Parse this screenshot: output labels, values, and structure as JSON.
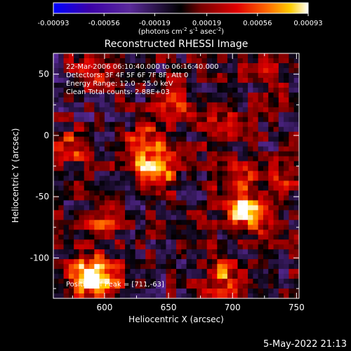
{
  "chart_data": {
    "type": "heatmap",
    "title": "Reconstructed RHESSI Image",
    "xlabel": "Heliocentric X (arcsec)",
    "ylabel": "Heliocentric Y (arcsec)",
    "xlim": [
      560,
      752
    ],
    "ylim": [
      -133,
      67
    ],
    "xticks": [
      600,
      650,
      700,
      750
    ],
    "yticks": [
      50,
      0,
      -50,
      -100
    ],
    "annotation_lines": [
      "22-Mar-2006 06:10:40.000 to 06:16:40.000",
      "Detectors: 3F 4F 5F 6F 7F 8F, Att 0",
      "Energy Range: 12.0 - 25.0 keV",
      "Clean     Total counts: 2.88E+03"
    ],
    "peak_label": "Position of Peak = [711,-63]",
    "peak": {
      "x": 711,
      "y": -63
    },
    "colorbar": {
      "range": [
        -0.00093,
        0.00093
      ],
      "ticks": [
        "-0.00093",
        "-0.00056",
        "-0.00019",
        "0.00019",
        "0.00056",
        "0.00093"
      ],
      "unit_label": "(photons cm",
      "unit_parts": [
        "(photons cm",
        "-2",
        " s",
        "-1",
        " asec",
        "-2",
        ")"
      ],
      "colormap": [
        "#0000ff",
        "#3b00a8",
        "#5a2a9a",
        "#000000",
        "#7a0000",
        "#e00000",
        "#ff6a00",
        "#ffcc00",
        "#ffffff"
      ]
    },
    "sources": [
      {
        "x": 711,
        "y": -63,
        "value": 0.00093
      },
      {
        "x": 640,
        "y": -30,
        "value": 0.00085
      },
      {
        "x": 633,
        "y": -8,
        "value": 0.0006
      },
      {
        "x": 588,
        "y": -112,
        "value": 0.00078
      },
      {
        "x": 598,
        "y": -120,
        "value": 0.0007
      },
      {
        "x": 692,
        "y": -115,
        "value": 0.0006
      },
      {
        "x": 744,
        "y": -30,
        "value": 0.0005
      },
      {
        "x": 705,
        "y": -35,
        "value": 0.00045
      },
      {
        "x": 575,
        "y": -10,
        "value": 0.0004
      },
      {
        "x": 588,
        "y": 55,
        "value": 0.00045
      },
      {
        "x": 600,
        "y": -70,
        "value": 0.00035
      },
      {
        "x": 655,
        "y": 28,
        "value": 0.0004
      },
      {
        "x": 730,
        "y": 50,
        "value": 0.0003
      },
      {
        "x": 690,
        "y": 10,
        "value": 0.0003
      }
    ],
    "grid": false
  },
  "footer": {
    "date": "5-May-2022 21:13"
  }
}
